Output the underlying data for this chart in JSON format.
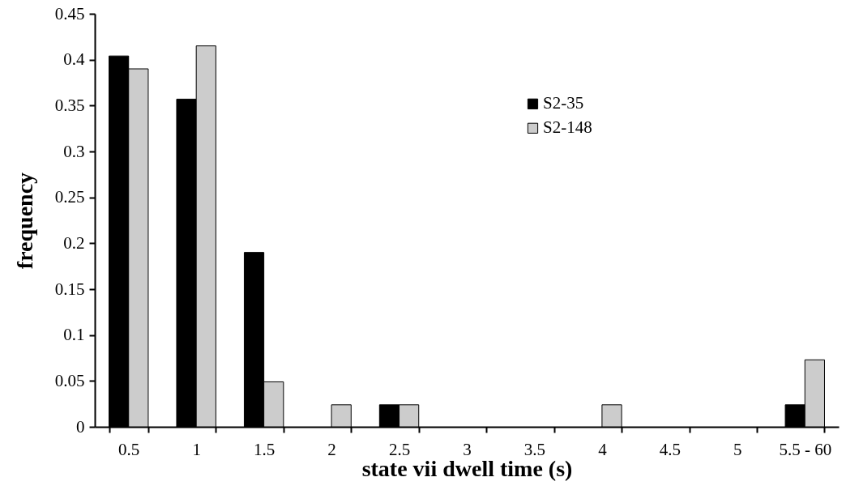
{
  "chart_data": {
    "type": "bar",
    "xlabel": "state vii dwell time (s)",
    "ylabel": "frequency",
    "categories": [
      "0.5",
      "1",
      "1.5",
      "2",
      "2.5",
      "3",
      "3.5",
      "4",
      "4.5",
      "5",
      "5.5 - 60"
    ],
    "series": [
      {
        "name": "S2-35",
        "color": "#000000",
        "values": [
          0.404,
          0.357,
          0.19,
          0,
          0.024,
          0,
          0,
          0,
          0,
          0,
          0.024
        ]
      },
      {
        "name": "S2-148",
        "color": "#cccccc",
        "values": [
          0.39,
          0.415,
          0.049,
          0.024,
          0.024,
          0,
          0,
          0.024,
          0,
          0,
          0.073
        ]
      }
    ],
    "ylim": [
      0,
      0.45
    ],
    "yticks": [
      0,
      0.05,
      0.1,
      0.15,
      0.2,
      0.25,
      0.3,
      0.35,
      0.4,
      0.45
    ],
    "grid": false,
    "legend": "top right"
  }
}
